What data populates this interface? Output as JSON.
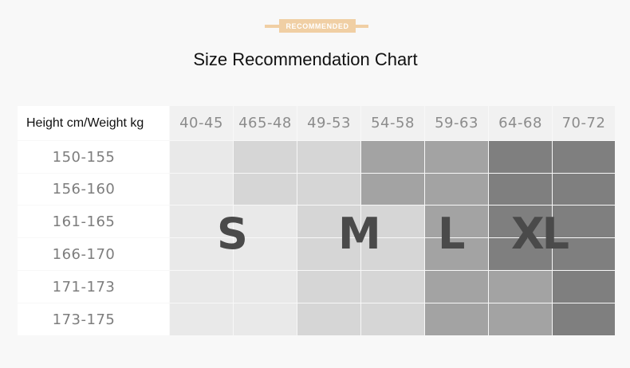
{
  "badge": {
    "label": "RECOMMENDED"
  },
  "title": "Size Recommendation Chart",
  "chart_data": {
    "type": "table",
    "corner_label": "Height cm/Weight kg",
    "columns": [
      "40-45",
      "465-48",
      "49-53",
      "54-58",
      "59-63",
      "64-68",
      "70-72"
    ],
    "rows": [
      "150-155",
      "156-160",
      "161-165",
      "166-170",
      "171-173",
      "173-175"
    ],
    "sizes": [
      [
        "S",
        "S",
        "S",
        "M",
        "M",
        "L",
        "L"
      ],
      [
        "S",
        "S",
        "S",
        "M",
        "M",
        "L",
        "L"
      ],
      [
        "S",
        "S",
        "M",
        "M",
        "L",
        "L",
        "XL"
      ],
      [
        "S",
        "S",
        "M",
        "M",
        "L",
        "L",
        "XL"
      ],
      [
        "S",
        "S",
        "M",
        "M",
        "L",
        "XL",
        "XL"
      ],
      [
        "S",
        "S",
        "M",
        "M",
        "L",
        "XL",
        "XL"
      ]
    ],
    "cell_colors": [
      [
        "#e9e9e9",
        "#d6d6d6",
        "#d6d6d6",
        "#a3a3a3",
        "#a3a3a3",
        "#7f7f7f",
        "#7f7f7f"
      ],
      [
        "#e9e9e9",
        "#d6d6d6",
        "#d6d6d6",
        "#a3a3a3",
        "#a3a3a3",
        "#7f7f7f",
        "#7f7f7f"
      ],
      [
        "#e9e9e9",
        "#e9e9e9",
        "#d6d6d6",
        "#d6d6d6",
        "#a3a3a3",
        "#7f7f7f",
        "#7f7f7f"
      ],
      [
        "#e9e9e9",
        "#e9e9e9",
        "#d6d6d6",
        "#d6d6d6",
        "#a3a3a3",
        "#7f7f7f",
        "#7f7f7f"
      ],
      [
        "#e9e9e9",
        "#e9e9e9",
        "#d6d6d6",
        "#d6d6d6",
        "#a3a3a3",
        "#a3a3a3",
        "#7f7f7f"
      ],
      [
        "#e9e9e9",
        "#e9e9e9",
        "#d6d6d6",
        "#d6d6d6",
        "#a3a3a3",
        "#a3a3a3",
        "#7f7f7f"
      ]
    ],
    "size_labels": [
      "S",
      "M",
      "L",
      "XL"
    ],
    "colors": {
      "badge": "#f0cfa4",
      "size_text": "#4a4a4a"
    }
  }
}
